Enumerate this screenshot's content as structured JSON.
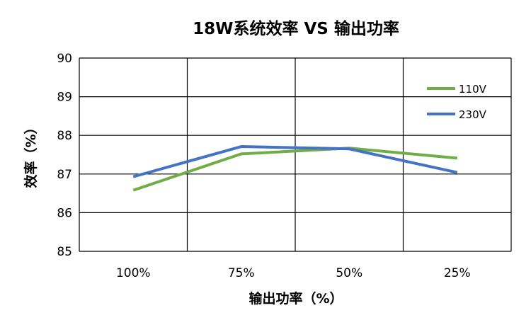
{
  "chart_data": {
    "type": "line",
    "title": "18W系统效率 VS 输出功率",
    "xlabel": "输出功率（%）",
    "ylabel": "效率（%）",
    "categories": [
      "100%",
      "75%",
      "50%",
      "25%"
    ],
    "ylim": [
      85,
      90
    ],
    "yticks": [
      85,
      86,
      87,
      88,
      89,
      90
    ],
    "grid": true,
    "legend_position": "right",
    "series": [
      {
        "name": "110V",
        "color": "#70ad47",
        "values": [
          86.58,
          87.52,
          87.67,
          87.41
        ]
      },
      {
        "name": "230V",
        "color": "#4472c4",
        "values": [
          86.93,
          87.71,
          87.65,
          87.04
        ]
      }
    ]
  }
}
